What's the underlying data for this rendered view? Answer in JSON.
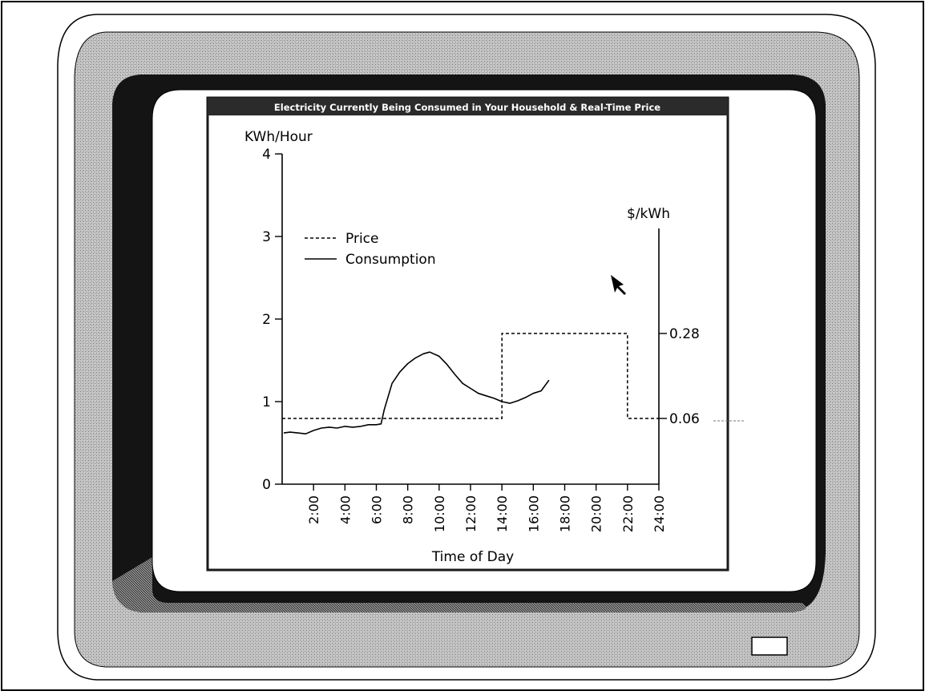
{
  "window": {
    "title": "Electricity Currently Being Consumed in Your Household & Real-Time Price"
  },
  "colors": {
    "page_background": "#ffffff",
    "monitor_bezel": "#b9b9b9",
    "screen_shadow": "#141414",
    "title_bar": "#2b2b2b",
    "title_text": "#ffffff",
    "ink": "#000000"
  },
  "icons": [
    "mouse-pointer-icon",
    "power-button-icon"
  ],
  "chart_data": {
    "type": "line",
    "title": "Electricity Currently Being Consumed in Your Household & Real-Time Price",
    "xlabel": "Time of Day",
    "ylabel": "KWh/Hour",
    "y2label": "$/kWh",
    "xlim": [
      0,
      24
    ],
    "ylim": [
      0,
      4
    ],
    "x_ticks": [
      2,
      4,
      6,
      8,
      10,
      12,
      14,
      16,
      18,
      20,
      22,
      24
    ],
    "x_tick_labels": [
      "2:00",
      "4:00",
      "6:00",
      "8:00",
      "10:00",
      "12:00",
      "14:00",
      "16:00",
      "18:00",
      "20:00",
      "22:00",
      "24:00"
    ],
    "y_ticks": [
      0,
      1,
      2,
      3,
      4
    ],
    "y_tick_labels": [
      "0",
      "1",
      "2",
      "3",
      "4"
    ],
    "y2_ticks": [
      {
        "label": "0.28",
        "value": 0.28
      },
      {
        "label": "0.06",
        "value": 0.06
      }
    ],
    "legend": {
      "position": "top-left",
      "entries": [
        {
          "name": "Price",
          "style": "dashed"
        },
        {
          "name": "Consumption",
          "style": "solid"
        }
      ]
    },
    "grid": false,
    "series": [
      {
        "name": "Price",
        "style": "dashed",
        "axis": "right",
        "unit": "$/kWh",
        "points": [
          [
            0,
            0.06
          ],
          [
            14,
            0.06
          ],
          [
            14,
            0.28
          ],
          [
            22,
            0.28
          ],
          [
            22,
            0.06
          ],
          [
            24,
            0.06
          ]
        ]
      },
      {
        "name": "Consumption",
        "style": "solid",
        "axis": "left",
        "unit": "KWh/Hour",
        "points": [
          [
            0.1,
            0.62
          ],
          [
            0.5,
            0.63
          ],
          [
            1.0,
            0.62
          ],
          [
            1.5,
            0.61
          ],
          [
            2.0,
            0.65
          ],
          [
            2.5,
            0.68
          ],
          [
            3.0,
            0.69
          ],
          [
            3.5,
            0.68
          ],
          [
            4.0,
            0.7
          ],
          [
            4.5,
            0.69
          ],
          [
            5.0,
            0.7
          ],
          [
            5.5,
            0.72
          ],
          [
            6.0,
            0.72
          ],
          [
            6.3,
            0.73
          ],
          [
            6.5,
            0.9
          ],
          [
            7.0,
            1.22
          ],
          [
            7.5,
            1.36
          ],
          [
            8.0,
            1.46
          ],
          [
            8.5,
            1.53
          ],
          [
            9.0,
            1.58
          ],
          [
            9.4,
            1.6
          ],
          [
            10.0,
            1.55
          ],
          [
            10.5,
            1.45
          ],
          [
            11.0,
            1.33
          ],
          [
            11.5,
            1.22
          ],
          [
            12.0,
            1.16
          ],
          [
            12.5,
            1.1
          ],
          [
            13.0,
            1.07
          ],
          [
            13.5,
            1.04
          ],
          [
            14.0,
            1.0
          ],
          [
            14.5,
            0.98
          ],
          [
            15.0,
            1.01
          ],
          [
            15.5,
            1.05
          ],
          [
            16.0,
            1.1
          ],
          [
            16.5,
            1.13
          ],
          [
            17.0,
            1.26
          ]
        ]
      }
    ]
  }
}
